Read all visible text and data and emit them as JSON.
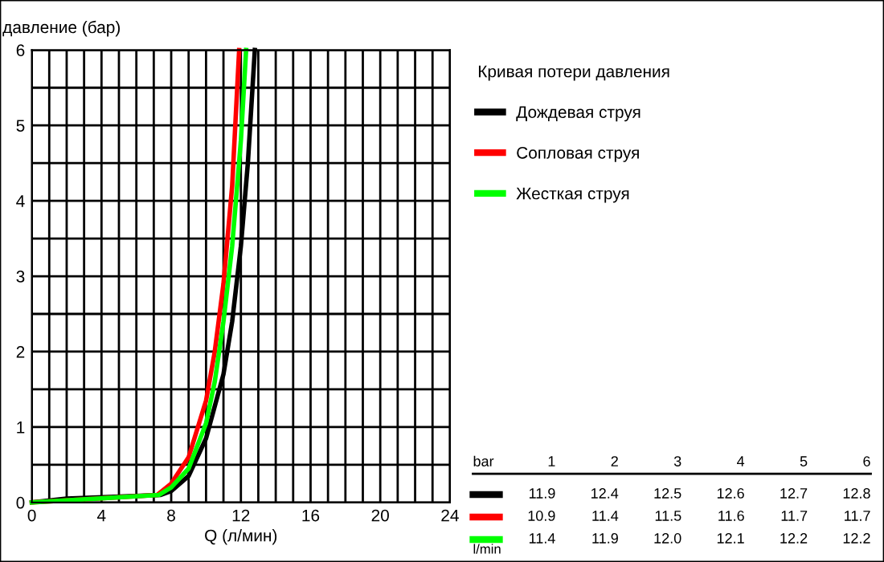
{
  "chart_data": {
    "type": "line",
    "xlabel": "Q (л/мин)",
    "ylabel": "давление (бар)",
    "legend_title": "Кривая потери давления",
    "xlim": [
      0,
      24
    ],
    "ylim": [
      0,
      6
    ],
    "xticks": [
      0,
      {
        "value": 1,
        "label": null
      },
      {
        "value": 2,
        "label": null
      },
      {
        "value": 3,
        "label": null
      },
      4,
      {
        "value": 5,
        "label": null
      },
      {
        "value": 6,
        "label": null
      },
      {
        "value": 7,
        "label": null
      },
      8,
      {
        "value": 9,
        "label": null
      },
      {
        "value": 10,
        "label": null
      },
      {
        "value": 11,
        "label": null
      },
      12,
      {
        "value": 13,
        "label": null
      },
      {
        "value": 14,
        "label": null
      },
      {
        "value": 15,
        "label": null
      },
      16,
      {
        "value": 17,
        "label": null
      },
      {
        "value": 18,
        "label": null
      },
      {
        "value": 19,
        "label": null
      },
      20,
      {
        "value": 21,
        "label": null
      },
      {
        "value": 22,
        "label": null
      },
      {
        "value": 23,
        "label": null
      },
      24
    ],
    "yticks": [
      0,
      {
        "value": 0.5,
        "label": null
      },
      1,
      {
        "value": 1.5,
        "label": null
      },
      2,
      {
        "value": 2.5,
        "label": null
      },
      3,
      {
        "value": 3.5,
        "label": null
      },
      4,
      {
        "value": 4.5,
        "label": null
      },
      5,
      {
        "value": 5.5,
        "label": null
      },
      6
    ],
    "grid": true,
    "legend": "right",
    "marker": "none",
    "line_style": "solid",
    "series": [
      {
        "name": "Дождевая струя",
        "color": "#000000",
        "x": [
          0,
          2,
          7.4,
          8,
          9,
          10,
          11,
          11.5,
          12,
          12.4,
          12.8
        ],
        "values": [
          0,
          0.05,
          0.1,
          0.15,
          0.35,
          0.85,
          1.7,
          2.4,
          3.4,
          4.5,
          6
        ]
      },
      {
        "name": "Сопловая струя",
        "color": "#ff0000",
        "x": [
          0,
          7.2,
          8,
          9,
          10,
          10.5,
          11,
          11.5,
          11.9
        ],
        "values": [
          0,
          0.1,
          0.25,
          0.6,
          1.35,
          2,
          2.9,
          4.2,
          6
        ]
      },
      {
        "name": "Жесткая струя",
        "color": "#00ff00",
        "x": [
          0,
          7.3,
          8,
          9,
          10,
          10.5,
          11,
          11.5,
          12,
          12.3
        ],
        "values": [
          0,
          0.1,
          0.2,
          0.45,
          1.05,
          1.6,
          2.4,
          3.4,
          4.8,
          6
        ]
      }
    ],
    "annotations": [
      "bar",
      "1",
      "2",
      "3",
      "4",
      "5",
      "6",
      "11.9",
      "12.4",
      "12.5",
      "12.6",
      "12.7",
      "12.8",
      "10.9",
      "11.4",
      "11.5",
      "11.6",
      "11.7",
      "11.7",
      "11.4",
      "11.9",
      "12.0",
      "12.1",
      "12.2",
      "12.2",
      "l/min"
    ]
  }
}
